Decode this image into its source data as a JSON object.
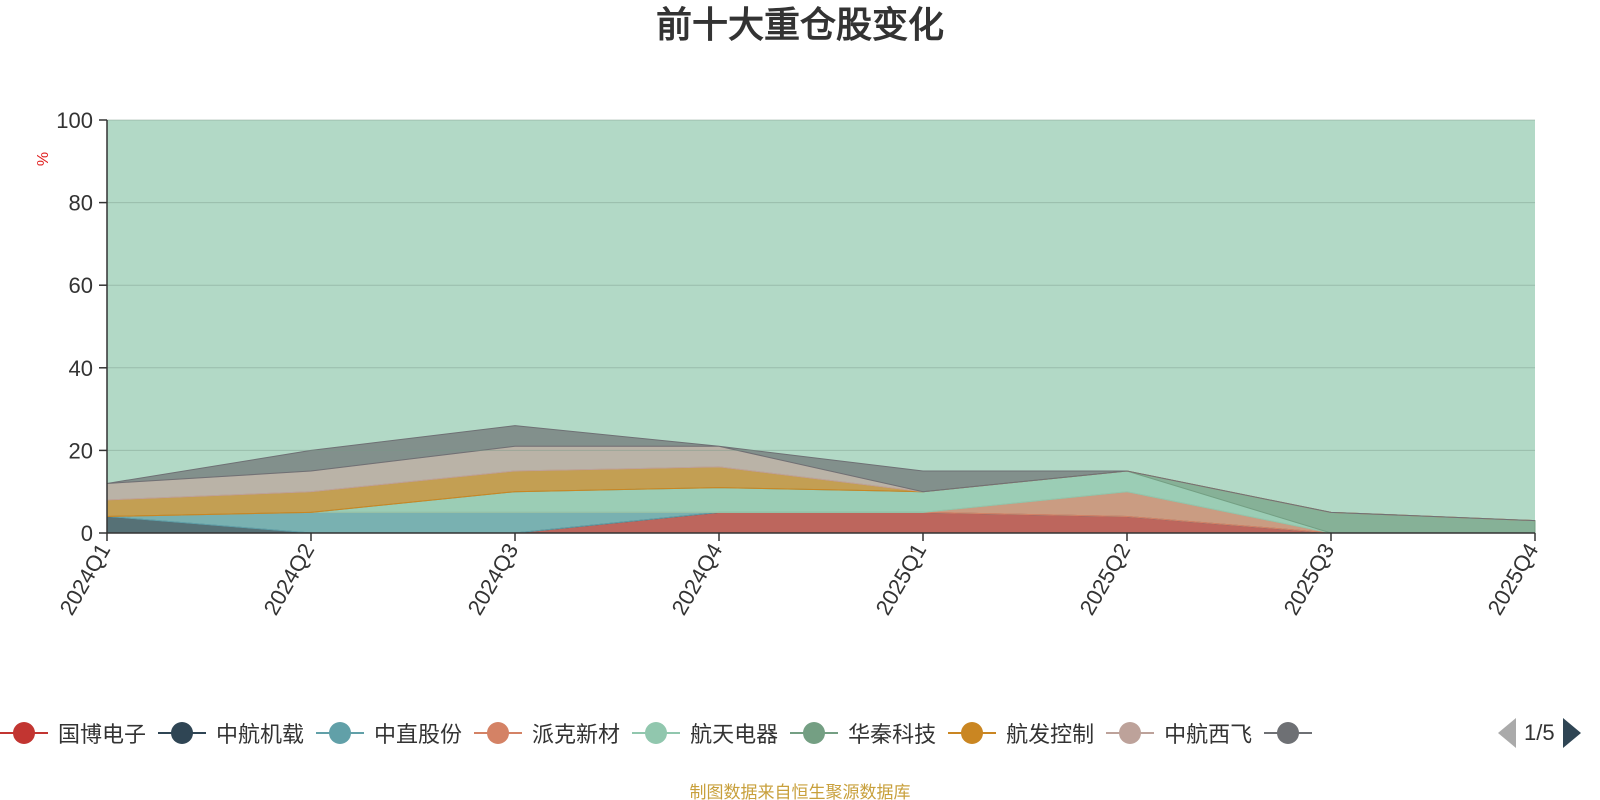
{
  "title": "前十大重仓股变化",
  "source_note": "制图数据来自恒生聚源数据库",
  "pager": {
    "text": "1/5"
  },
  "chart_data": {
    "type": "area",
    "stacked": true,
    "title": "前十大重仓股变化",
    "xlabel": "",
    "ylabel": "%",
    "ylim": [
      0,
      100
    ],
    "yticks": [
      0,
      20,
      40,
      60,
      80,
      100
    ],
    "grid": true,
    "legend_position": "bottom",
    "categories": [
      "2024Q1",
      "2024Q2",
      "2024Q3",
      "2024Q4",
      "2025Q1",
      "2025Q2",
      "2025Q3",
      "2025Q4"
    ],
    "series": [
      {
        "name": "国博电子",
        "color": "#c23531",
        "values": [
          0,
          0,
          0,
          5,
          5,
          4,
          0,
          0
        ]
      },
      {
        "name": "中航机载",
        "color": "#2f4554",
        "values": [
          4,
          0,
          0,
          0,
          0,
          0,
          0,
          0
        ]
      },
      {
        "name": "中直股份",
        "color": "#61a0a8",
        "values": [
          0,
          5,
          5,
          0,
          0,
          0,
          0,
          0
        ]
      },
      {
        "name": "派克新材",
        "color": "#d48265",
        "values": [
          0,
          0,
          0,
          0,
          0,
          6,
          0,
          0
        ]
      },
      {
        "name": "航天电器",
        "color": "#91c7ae",
        "values": [
          0,
          0,
          5,
          6,
          5,
          5,
          0,
          0
        ]
      },
      {
        "name": "华秦科技",
        "color": "#749f83",
        "values": [
          0,
          0,
          0,
          0,
          0,
          0,
          5,
          3
        ]
      },
      {
        "name": "航发控制",
        "color": "#ca8622",
        "values": [
          4,
          5,
          5,
          5,
          0,
          0,
          0,
          0
        ]
      },
      {
        "name": "中航西飞",
        "color": "#bda29a",
        "values": [
          4,
          5,
          6,
          5,
          0,
          0,
          0,
          0
        ]
      },
      {
        "name": "",
        "color": "#6e7074",
        "values": [
          0,
          5,
          5,
          0,
          5,
          0,
          0,
          0
        ]
      }
    ],
    "remainder_color": "#b2d9c6"
  }
}
